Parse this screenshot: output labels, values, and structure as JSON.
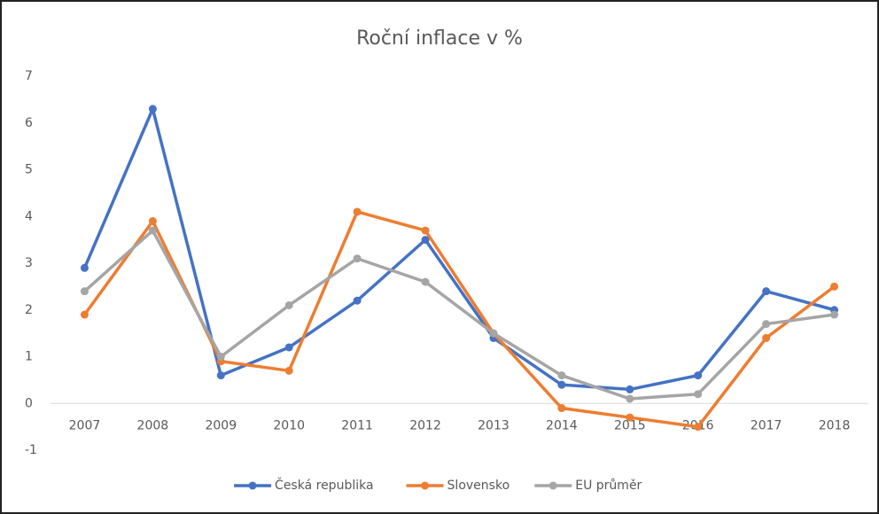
{
  "chart_data": {
    "type": "line",
    "title": "Roční inflace v %",
    "categories": [
      "2007",
      "2008",
      "2009",
      "2010",
      "2011",
      "2012",
      "2013",
      "2014",
      "2015",
      "2016",
      "2017",
      "2018"
    ],
    "series": [
      {
        "name": "Česká republika",
        "color": "#4472c4",
        "values": [
          2.9,
          6.3,
          0.6,
          1.2,
          2.2,
          3.5,
          1.4,
          0.4,
          0.3,
          0.6,
          2.4,
          2.0
        ]
      },
      {
        "name": "Slovensko",
        "color": "#ed7d31",
        "values": [
          1.9,
          3.9,
          0.9,
          0.7,
          4.1,
          3.7,
          1.5,
          -0.1,
          -0.3,
          -0.5,
          1.4,
          2.5
        ]
      },
      {
        "name": "EU průměr",
        "color": "#a5a5a5",
        "values": [
          2.4,
          3.7,
          1.0,
          2.1,
          3.1,
          2.6,
          1.5,
          0.6,
          0.1,
          0.2,
          1.7,
          1.9
        ]
      }
    ],
    "ylim": [
      -1,
      7
    ],
    "yticks": [
      -1,
      0,
      1,
      2,
      3,
      4,
      5,
      6,
      7
    ],
    "grid": false,
    "legend": "bottom"
  }
}
